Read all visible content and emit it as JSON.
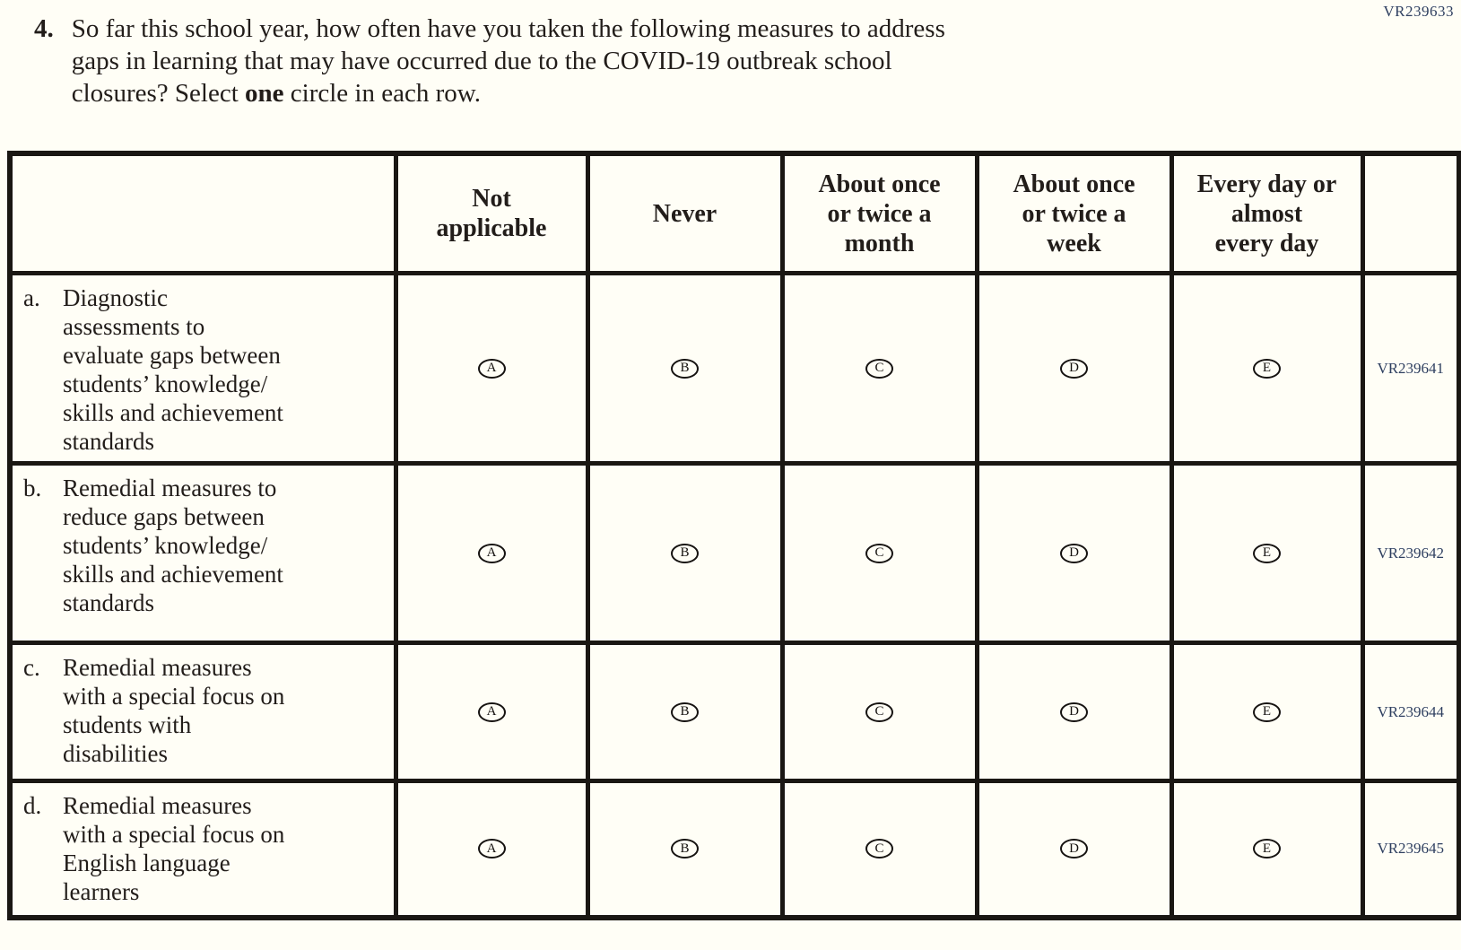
{
  "page_code": "VR239633",
  "question": {
    "number": "4.",
    "line1": "So far this school year, how often have you taken the following measures to address",
    "line2": "gaps in learning that may have occurred due to the COVID-19 outbreak school",
    "line3_pre": "closures? Select ",
    "line3_bold": "one",
    "line3_post": " circle in each row."
  },
  "table": {
    "headers": [
      [
        ""
      ],
      [
        "Not",
        "applicable"
      ],
      [
        "Never"
      ],
      [
        "About once",
        "or twice a",
        "month"
      ],
      [
        "About once",
        "or twice a",
        "week"
      ],
      [
        "Every day or",
        "almost",
        "every day"
      ],
      [
        ""
      ]
    ],
    "option_letters": [
      "A",
      "B",
      "C",
      "D",
      "E"
    ],
    "rows": [
      {
        "letter": "a.",
        "text_lines": [
          "Diagnostic",
          "assessments to",
          "evaluate gaps between",
          "students’ knowledge/",
          "skills and achievement",
          "standards"
        ],
        "code": "VR239641"
      },
      {
        "letter": "b.",
        "text_lines": [
          "Remedial measures to",
          "reduce gaps between",
          "students’ knowledge/",
          "skills and achievement",
          "standards"
        ],
        "code": "VR239642"
      },
      {
        "letter": "c.",
        "text_lines": [
          "Remedial measures",
          "with a special focus on",
          "students with",
          "disabilities"
        ],
        "code": "VR239644"
      },
      {
        "letter": "d.",
        "text_lines": [
          "Remedial measures",
          "with a special focus on",
          "English language",
          "learners"
        ],
        "code": "VR239645"
      }
    ]
  },
  "colors": {
    "background": "#fffef6",
    "body_text": "#221d1a",
    "table_border": "#1a1713",
    "code_text": "#2e3f60"
  }
}
